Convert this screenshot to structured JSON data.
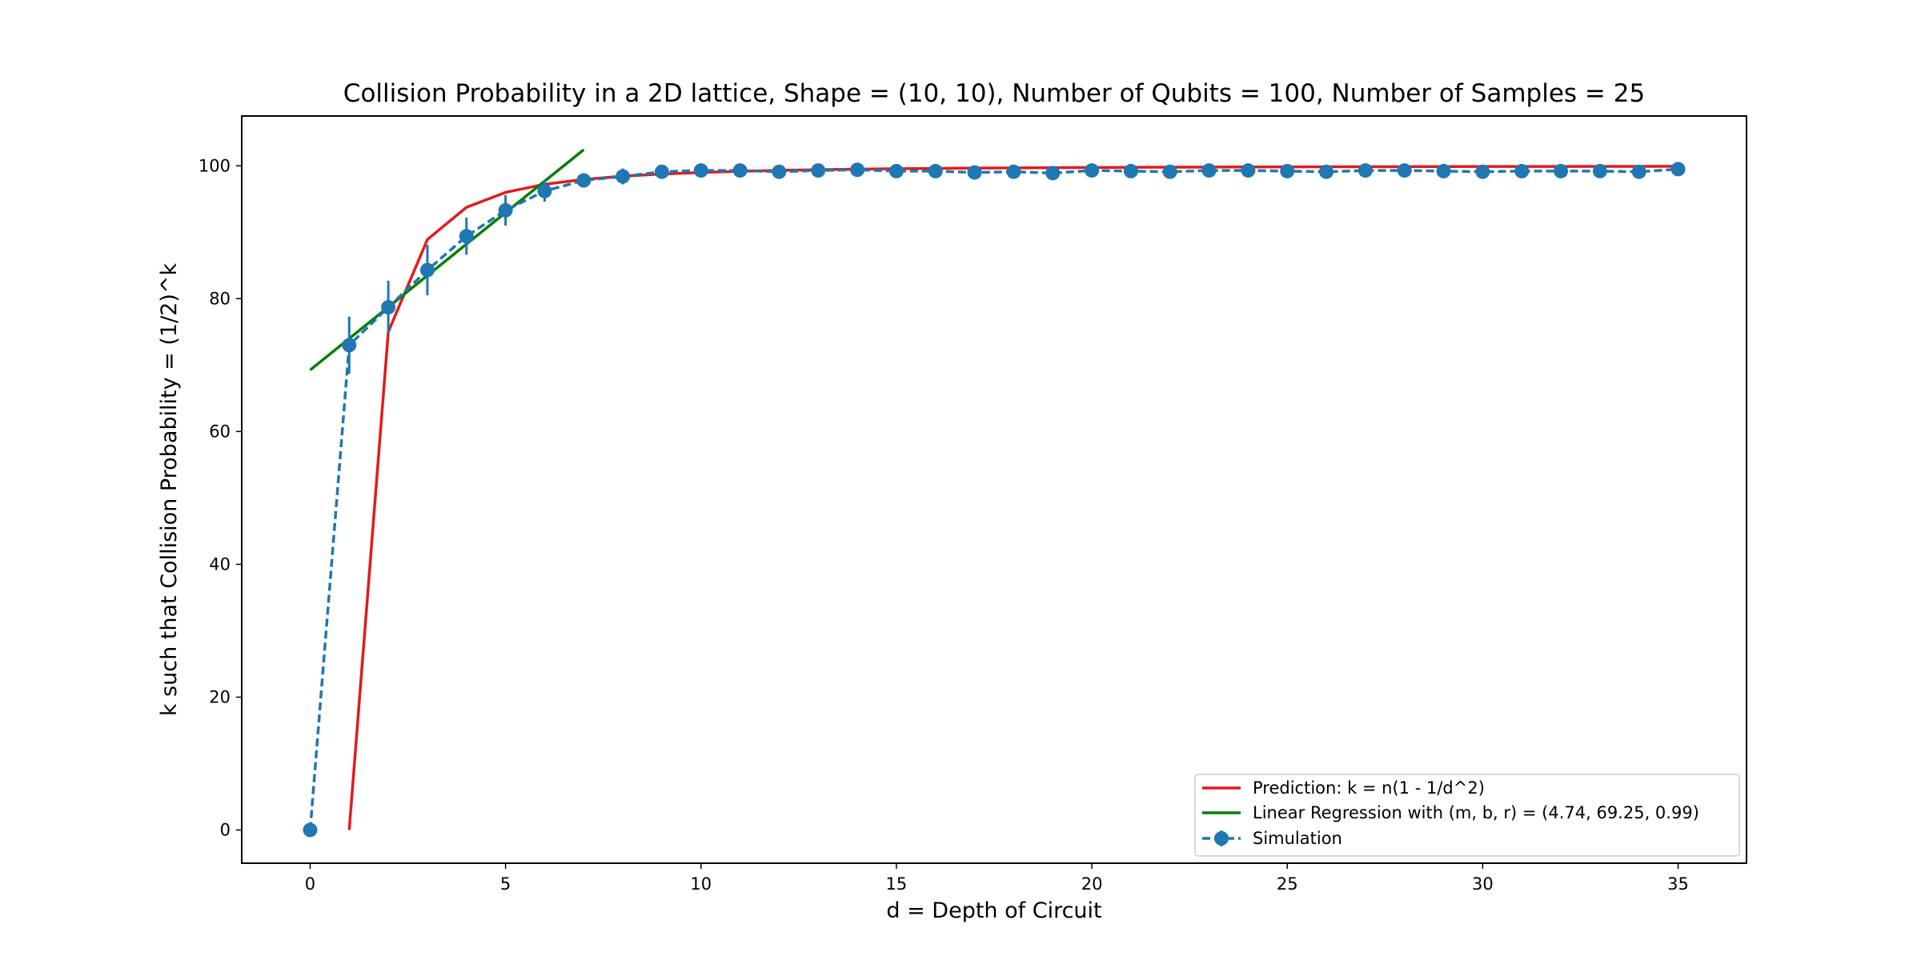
{
  "chart_data": {
    "type": "line",
    "title": "Collision Probability in a 2D lattice, Shape = (10, 10), Number of Qubits = 100, Number of Samples = 25",
    "xlabel": "d = Depth of Circuit",
    "ylabel": "k such that Collision Probability = (1/2)^k",
    "xlim": [
      -1.75,
      36.75
    ],
    "ylim": [
      -5,
      107.5
    ],
    "xticks": [
      0,
      5,
      10,
      15,
      20,
      25,
      30,
      35
    ],
    "yticks": [
      0,
      20,
      40,
      60,
      80,
      100
    ],
    "grid": false,
    "legend_position": "lower-right",
    "series": [
      {
        "name": "Prediction: k = n(1 - 1/d^2)",
        "style": "solid",
        "color": "#e41a1c",
        "x": [
          1,
          2,
          3,
          4,
          5,
          6,
          7,
          8,
          9,
          10,
          11,
          12,
          13,
          14,
          15,
          16,
          17,
          18,
          19,
          20,
          21,
          22,
          23,
          24,
          25,
          26,
          27,
          28,
          29,
          30,
          31,
          32,
          33,
          34,
          35
        ],
        "y": [
          0,
          75,
          88.9,
          93.75,
          96,
          97.22,
          97.96,
          98.44,
          98.77,
          99,
          99.17,
          99.31,
          99.41,
          99.49,
          99.56,
          99.61,
          99.65,
          99.69,
          99.72,
          99.75,
          99.77,
          99.79,
          99.81,
          99.83,
          99.84,
          99.85,
          99.86,
          99.87,
          99.88,
          99.89,
          99.9,
          99.9,
          99.91,
          99.91,
          99.92
        ]
      },
      {
        "name": "Linear Regression with (m, b, r) = (4.74, 69.25, 0.99)",
        "style": "solid",
        "color": "#008000",
        "x": [
          0,
          7
        ],
        "y": [
          69.25,
          102.43
        ]
      },
      {
        "name": "Simulation",
        "style": "dashed-with-markers-and-error-bars",
        "color": "#1f77b4",
        "x": [
          0,
          1,
          2,
          3,
          4,
          5,
          6,
          7,
          8,
          9,
          10,
          11,
          12,
          13,
          14,
          15,
          16,
          17,
          18,
          19,
          20,
          21,
          22,
          23,
          24,
          25,
          26,
          27,
          28,
          29,
          30,
          31,
          32,
          33,
          34,
          35
        ],
        "y": [
          0,
          73,
          78.7,
          84.3,
          89.4,
          93.3,
          96.2,
          97.8,
          98.4,
          99.1,
          99.3,
          99.3,
          99.1,
          99.3,
          99.4,
          99.2,
          99.2,
          99,
          99.1,
          98.9,
          99.3,
          99.2,
          99.1,
          99.3,
          99.3,
          99.2,
          99.1,
          99.3,
          99.3,
          99.2,
          99.1,
          99.2,
          99.2,
          99.2,
          99.1,
          99.5
        ],
        "error": [
          0,
          4.3,
          4,
          3.8,
          2.8,
          2.3,
          1.6,
          1,
          1.2,
          0.6,
          0.5,
          0.5,
          0.5,
          0.5,
          0.5,
          0.5,
          0.5,
          0.5,
          0.5,
          0.5,
          0.5,
          0.5,
          0.5,
          0.5,
          0.5,
          0.5,
          0.5,
          0.5,
          0.5,
          0.5,
          0.5,
          0.5,
          0.5,
          0.5,
          0.5,
          0.5
        ]
      }
    ]
  }
}
